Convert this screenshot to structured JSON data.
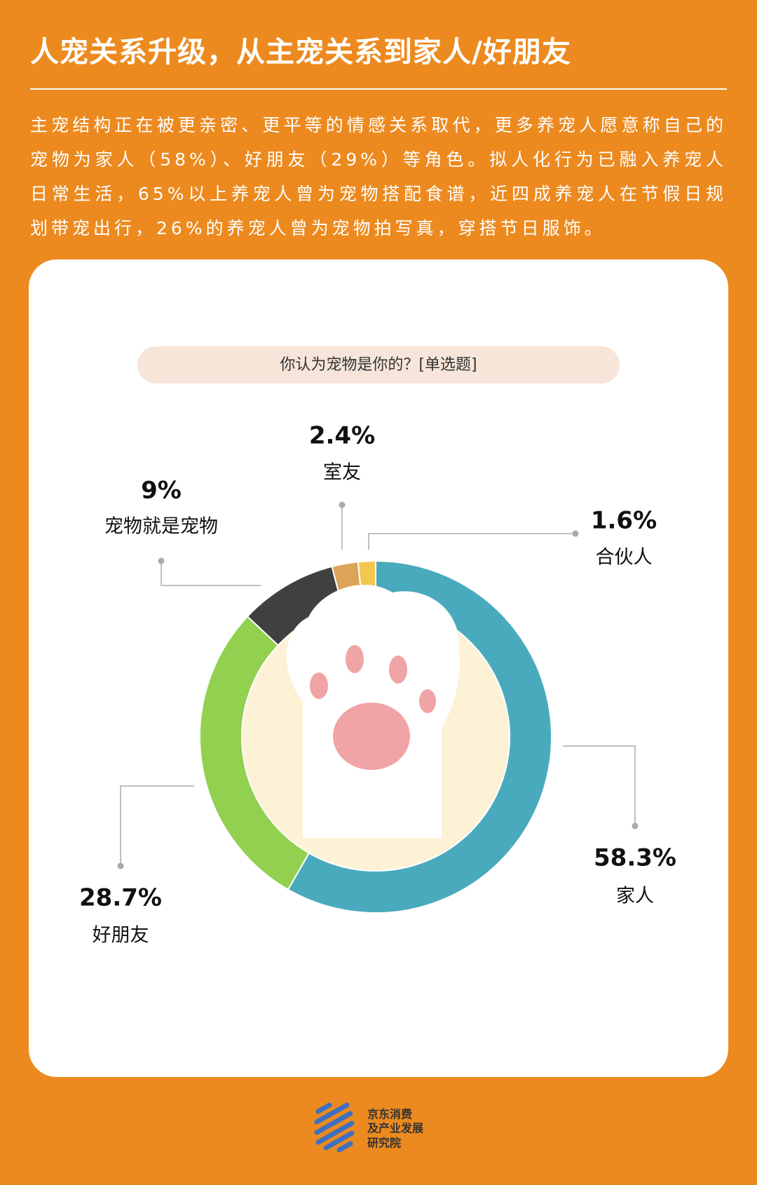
{
  "header": {
    "title": "人宠关系升级，从主宠关系到家人/好朋友",
    "paragraph": "主宠结构正在被更亲密、更平等的情感关系取代，更多养宠人愿意称自己的宠物为家人（58%）、好朋友（29%）等角色。拟人化行为已融入养宠人日常生活，65%以上养宠人曾为宠物搭配食谱，近四成养宠人在节假日规划带宠出行，26%的养宠人曾为宠物拍写真，穿搭节日服饰。"
  },
  "chart_data": {
    "type": "donut",
    "title": "你认为宠物是你的？[单选题]",
    "categories": [
      "家人",
      "好朋友",
      "宠物就是宠物",
      "室友",
      "合伙人"
    ],
    "values": [
      58.3,
      28.7,
      9,
      2.4,
      1.6
    ],
    "value_labels": [
      "58.3%",
      "28.7%",
      "9%",
      "2.4%",
      "1.6%"
    ],
    "colors": [
      "#4aaabd",
      "#92d050",
      "#404040",
      "#dda357",
      "#f3c64f"
    ]
  },
  "footer": {
    "logo_text": [
      "京东消费",
      "及产业发展",
      "研究院"
    ]
  }
}
